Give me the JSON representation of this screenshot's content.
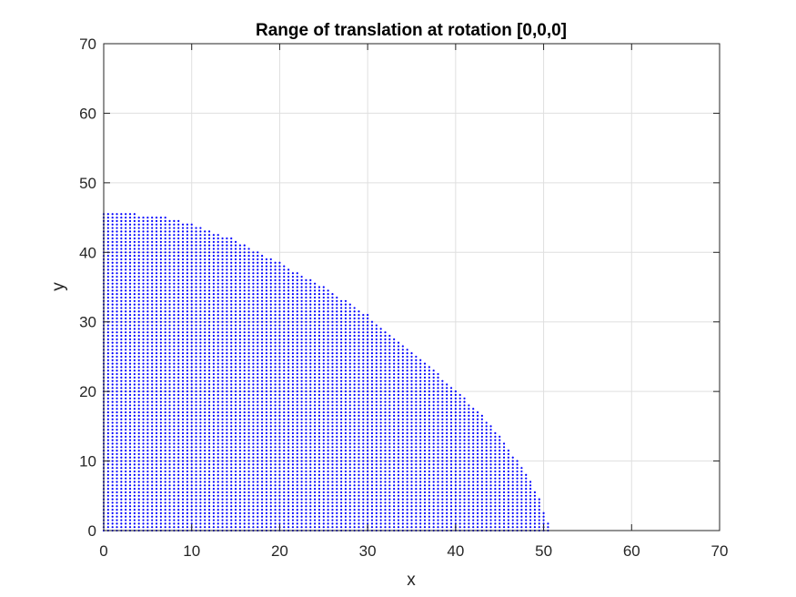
{
  "chart_data": {
    "type": "scatter",
    "title": "Range of translation at rotation [0,0,0]",
    "xlabel": "x",
    "ylabel": "y",
    "xlim": [
      0,
      70
    ],
    "ylim": [
      0,
      70
    ],
    "xticks": [
      "0",
      "10",
      "20",
      "30",
      "40",
      "50",
      "60",
      "70"
    ],
    "yticks": [
      "0",
      "10",
      "20",
      "30",
      "40",
      "50",
      "60",
      "70"
    ],
    "grid": true,
    "marker_color": "#0000ff",
    "boundary": {
      "x": [
        0,
        3.5,
        5,
        7,
        10,
        15,
        20,
        25,
        30,
        35,
        40,
        43,
        45,
        47,
        48.5,
        49.5,
        50,
        50.5,
        50.5
      ],
      "y": [
        45.5,
        45.5,
        45.4,
        45.0,
        44.0,
        41.8,
        38.5,
        35.0,
        31.0,
        25.8,
        20.3,
        16.5,
        13.5,
        10.0,
        7.0,
        4.5,
        2.5,
        1.0,
        0
      ]
    },
    "grid_spacing": 0.5
  }
}
